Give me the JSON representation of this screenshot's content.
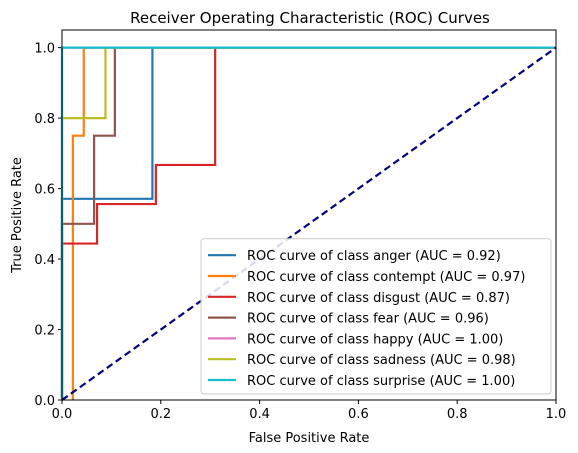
{
  "chart_data": {
    "type": "line",
    "title": "Receiver Operating Characteristic (ROC) Curves",
    "xlabel": "False Positive Rate",
    "ylabel": "True Positive Rate",
    "xlim": [
      0.0,
      1.0
    ],
    "ylim": [
      0.0,
      1.05
    ],
    "xticks": [
      "0.0",
      "0.2",
      "0.4",
      "0.6",
      "0.8",
      "1.0"
    ],
    "yticks": [
      "0.0",
      "0.2",
      "0.4",
      "0.6",
      "0.8",
      "1.0"
    ],
    "grid": false,
    "legend_position": "lower-right",
    "diagonal": {
      "x": [
        0,
        1
      ],
      "y": [
        0,
        1
      ],
      "color": "#000080",
      "style": "dashed"
    },
    "series": [
      {
        "name": "ROC curve of class anger (AUC = 0.92)",
        "color": "#1f77b4",
        "x": [
          0,
          0,
          0.183,
          0.183,
          1
        ],
        "y": [
          0,
          0.571,
          0.571,
          1,
          1
        ]
      },
      {
        "name": "ROC curve of class contempt (AUC = 0.97)",
        "color": "#ff7f0e",
        "x": [
          0.022,
          0.022,
          0.044,
          0.044,
          1
        ],
        "y": [
          0,
          0.75,
          0.75,
          1,
          1
        ]
      },
      {
        "name": "ROC curve of class disgust (AUC = 0.87)",
        "color": "#d62728",
        "x": [
          0,
          0,
          0.071,
          0.071,
          0.19,
          0.19,
          0.31,
          0.31,
          1
        ],
        "y": [
          0,
          0.444,
          0.444,
          0.556,
          0.556,
          0.667,
          0.667,
          1,
          1
        ]
      },
      {
        "name": "ROC curve of class fear (AUC = 0.96)",
        "color": "#8c564b",
        "x": [
          0,
          0,
          0.065,
          0.065,
          0.107,
          0.107,
          1
        ],
        "y": [
          0,
          0.5,
          0.5,
          0.75,
          0.75,
          1,
          1
        ]
      },
      {
        "name": "ROC curve of class happy (AUC = 1.00)",
        "color": "#e377c2",
        "x": [
          0,
          0,
          1
        ],
        "y": [
          0,
          1,
          1
        ]
      },
      {
        "name": "ROC curve of class sadness (AUC = 0.98)",
        "color": "#bcbd22",
        "x": [
          0,
          0,
          0.088,
          0.088,
          1
        ],
        "y": [
          0,
          0.8,
          0.8,
          1,
          1
        ]
      },
      {
        "name": "ROC curve of class surprise (AUC = 1.00)",
        "color": "#17becf",
        "x": [
          0,
          0,
          1
        ],
        "y": [
          0,
          1,
          1
        ]
      }
    ]
  }
}
